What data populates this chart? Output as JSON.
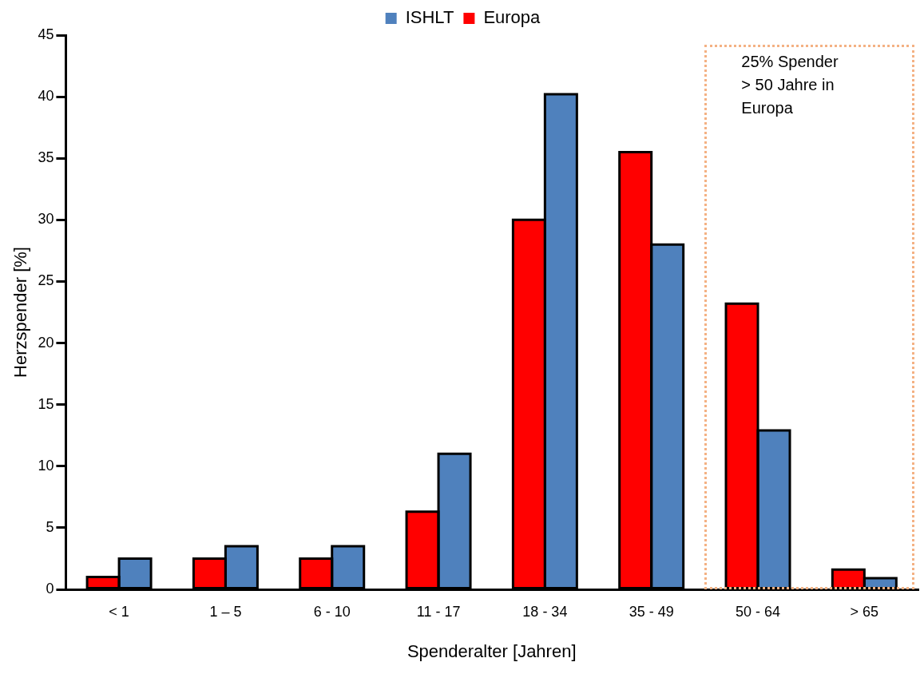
{
  "chart_data": {
    "type": "bar",
    "xlabel": "Spenderalter [Jahren]",
    "ylabel": "Herzspender [%]",
    "categories": [
      "< 1",
      "1 – 5",
      "6 - 10",
      "11 - 17",
      "18 - 34",
      "35 - 49",
      "50 - 64",
      "> 65"
    ],
    "series": [
      {
        "name": "Europa",
        "color": "#ff0000",
        "values": [
          1,
          2.5,
          2.5,
          6.3,
          30,
          35.5,
          23.2,
          1.6
        ]
      },
      {
        "name": "ISHLT",
        "color": "#4f81bd",
        "values": [
          2.5,
          3.5,
          3.5,
          11,
          40.2,
          28,
          12.9,
          0.9
        ]
      }
    ],
    "ylim": [
      0,
      45
    ],
    "yticks": [
      0,
      5,
      10,
      15,
      20,
      25,
      30,
      35,
      40,
      45
    ],
    "grid": false,
    "legend": "top",
    "annotations": [
      "25% Spender\n> 50 Jahre in\nEuropa"
    ]
  }
}
